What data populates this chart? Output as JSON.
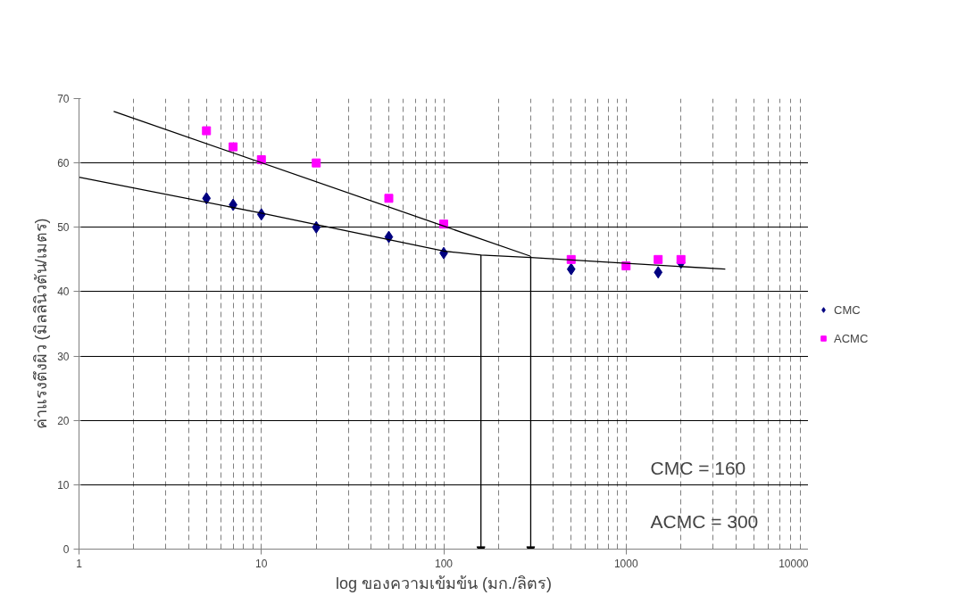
{
  "chart_data": {
    "type": "scatter",
    "xlabel": "log ของความเข้มข้น (มก./ลิตร)",
    "ylabel": "ค่าแรงตึงผิว (มิลลินิวตัน/เมตร)",
    "log": "x",
    "xlim": [
      1,
      10000
    ],
    "xticks": [
      1,
      10,
      100,
      1000,
      10000
    ],
    "ylim": [
      0,
      70
    ],
    "yticks": [
      0,
      10,
      20,
      30,
      40,
      50,
      60,
      70
    ],
    "grid": true,
    "legend": "right",
    "series": [
      {
        "name": "CMC",
        "color": "#000080",
        "marker": "diamond",
        "x": [
          5,
          7,
          10,
          20,
          50,
          100,
          500,
          1000,
          1500,
          2000
        ],
        "values": [
          54.5,
          53.5,
          52,
          50,
          48.5,
          46,
          43.5,
          null,
          43,
          44.5
        ]
      },
      {
        "name": "ACMC",
        "color": "#ff00ff",
        "marker": "square",
        "x": [
          5,
          7,
          10,
          20,
          50,
          100,
          500,
          1000,
          1500,
          2000
        ],
        "values": [
          65,
          62.5,
          60.5,
          60,
          54.5,
          50.5,
          45,
          44,
          45,
          45
        ]
      },
      {
        "type": "line",
        "color": "#000000",
        "x": [
          1,
          10,
          100,
          160,
          300,
          1000,
          3500
        ],
        "values": [
          57.8,
          52.2,
          46.3,
          45.7,
          45.3,
          44.4,
          43.5
        ]
      },
      {
        "type": "line",
        "color": "#000000",
        "x": [
          1.55,
          300
        ],
        "values": [
          68,
          45.5
        ]
      },
      {
        "type": "line",
        "color": "#000000",
        "x": [
          160,
          160
        ],
        "values": [
          45.7,
          0
        ]
      },
      {
        "type": "line",
        "color": "#000000",
        "x": [
          300,
          300
        ],
        "values": [
          45.5,
          0
        ]
      }
    ],
    "annotations": [
      "CMC    = 160",
      "ACMC =  300"
    ]
  }
}
